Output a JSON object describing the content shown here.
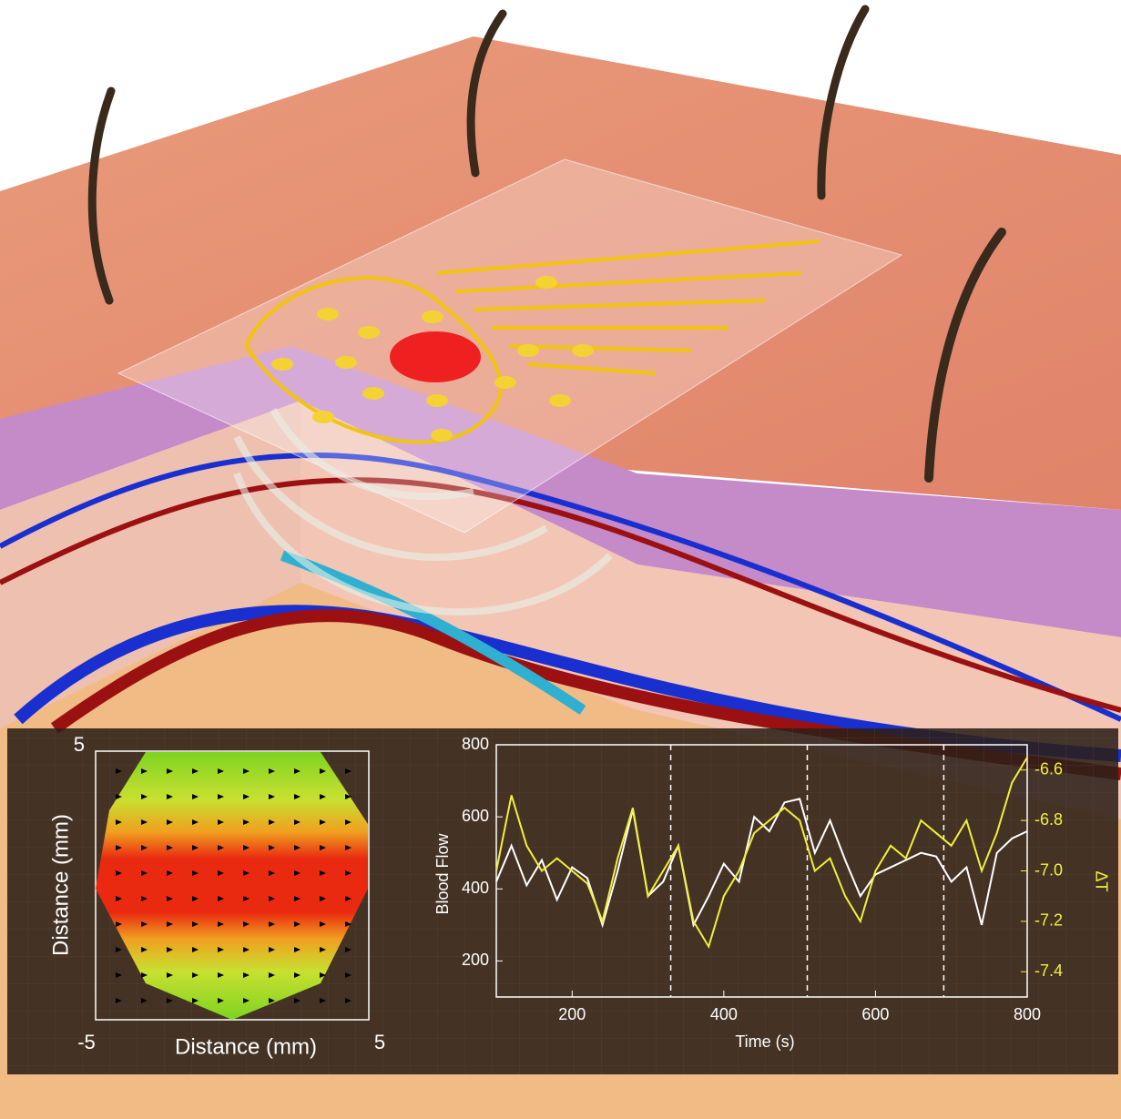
{
  "chart_data": [
    {
      "type": "map",
      "x_label": "Distance (mm)",
      "y_label": "Distance (mm)",
      "xlim": [
        -5,
        5
      ],
      "ylim": [
        -5,
        5
      ],
      "xticks": [
        -5,
        5
      ],
      "yticks": [
        5
      ]
    },
    {
      "type": "line",
      "x_label": "Time (s)",
      "y_label": "Blood Flow",
      "y2_label": "ΔT",
      "xlim": [
        100,
        800
      ],
      "xticks": [
        200,
        400,
        600,
        800
      ],
      "ylim": [
        100,
        800
      ],
      "yticks": [
        200,
        400,
        600,
        800
      ],
      "y2lim": [
        -7.5,
        -6.5
      ],
      "y2ticks": [
        -6.6,
        -6.8,
        {
          "value": -7,
          "label": "-7.0"
        },
        -7.2,
        -7.4
      ],
      "markers": [
        330,
        510,
        690
      ],
      "x": [
        100,
        120,
        140,
        160,
        180,
        200,
        220,
        240,
        260,
        280,
        300,
        320,
        340,
        360,
        380,
        400,
        420,
        440,
        460,
        480,
        500,
        520,
        540,
        560,
        580,
        600,
        620,
        640,
        660,
        680,
        700,
        720,
        740,
        760,
        780,
        800
      ],
      "series": [
        {
          "name": "Blood Flow",
          "color": "#ffffff",
          "values": [
            420,
            520,
            410,
            480,
            370,
            460,
            430,
            300,
            450,
            620,
            380,
            420,
            520,
            300,
            380,
            470,
            420,
            600,
            560,
            640,
            650,
            500,
            590,
            480,
            380,
            440,
            460,
            480,
            500,
            490,
            420,
            460,
            300,
            500,
            540,
            560
          ]
        },
        {
          "name": "ΔT",
          "color": "#f2ef3a",
          "axis": "y2",
          "values": [
            -7.0,
            -6.7,
            -6.9,
            -7.0,
            -6.95,
            -7.0,
            -7.05,
            -7.2,
            -6.95,
            -6.75,
            -7.1,
            -7.0,
            -6.9,
            -7.2,
            -7.3,
            -7.1,
            -7.0,
            -6.85,
            -6.8,
            -6.75,
            -6.8,
            -7.0,
            -6.95,
            -7.1,
            -7.2,
            -7.0,
            -6.9,
            -6.95,
            -6.8,
            -6.85,
            -6.9,
            -6.8,
            -7.0,
            -6.85,
            -6.65,
            -6.55
          ]
        }
      ]
    }
  ]
}
